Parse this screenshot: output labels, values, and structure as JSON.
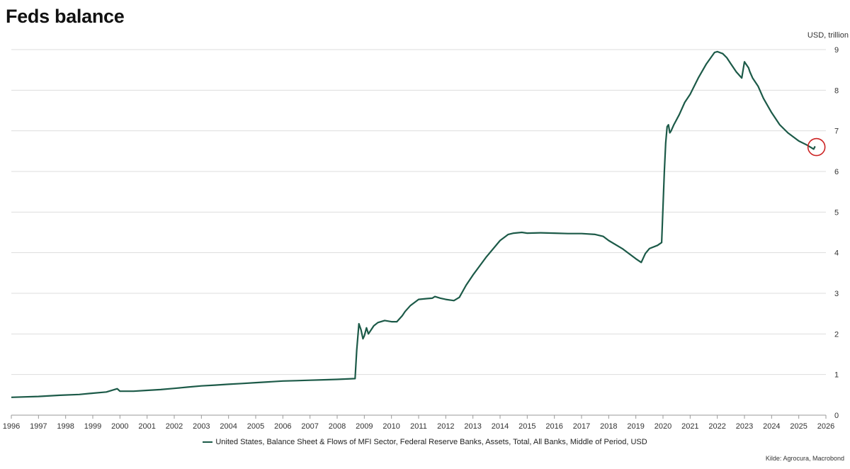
{
  "title": "Feds balance",
  "unit_label": "USD, trillion",
  "source": "Kilde: Agrocura, Macrobond",
  "colors": {
    "line": "#1c5a48",
    "marker": "#cc2222",
    "grid": "#dddddd"
  },
  "chart_data": {
    "type": "line",
    "title": "Feds balance",
    "ylabel": "USD, trillion",
    "xlim": [
      1996,
      2026
    ],
    "ylim": [
      0,
      9
    ],
    "x_ticks": [
      "1996",
      "1997",
      "1998",
      "1999",
      "2000",
      "2001",
      "2002",
      "2003",
      "2004",
      "2005",
      "2006",
      "2007",
      "2008",
      "2009",
      "2010",
      "2011",
      "2012",
      "2013",
      "2014",
      "2015",
      "2016",
      "2017",
      "2018",
      "2019",
      "2020",
      "2021",
      "2022",
      "2023",
      "2024",
      "2025",
      "2026"
    ],
    "y_ticks": [
      "0",
      "1",
      "2",
      "3",
      "4",
      "5",
      "6",
      "7",
      "8",
      "9"
    ],
    "grid": true,
    "legend_position": "bottom",
    "annotations": [
      {
        "type": "circle",
        "x": 2025.6,
        "y": 6.6
      }
    ],
    "series": [
      {
        "name": "United States, Balance Sheet & Flows of MFI Sector, Federal Reserve Banks, Assets, Total, All Banks, Middle of Period, USD",
        "x": [
          1996.0,
          1997.0,
          1997.8,
          1998.5,
          1999.0,
          1999.5,
          1999.9,
          2000.0,
          2000.5,
          2001.0,
          2001.5,
          2002.0,
          2002.5,
          2003.0,
          2003.5,
          2004.0,
          2004.5,
          2005.0,
          2005.5,
          2006.0,
          2006.5,
          2007.0,
          2007.5,
          2008.0,
          2008.66,
          2008.72,
          2008.8,
          2008.88,
          2008.95,
          2009.0,
          2009.08,
          2009.15,
          2009.25,
          2009.35,
          2009.5,
          2009.75,
          2010.0,
          2010.2,
          2010.4,
          2010.5,
          2010.7,
          2011.0,
          2011.3,
          2011.5,
          2011.6,
          2011.8,
          2012.0,
          2012.3,
          2012.5,
          2012.75,
          2013.0,
          2013.5,
          2014.0,
          2014.3,
          2014.5,
          2014.8,
          2015.0,
          2015.5,
          2016.0,
          2016.5,
          2017.0,
          2017.5,
          2017.8,
          2018.0,
          2018.5,
          2019.0,
          2019.2,
          2019.35,
          2019.5,
          2019.8,
          2019.95,
          2020.05,
          2020.1,
          2020.15,
          2020.2,
          2020.25,
          2020.3,
          2020.4,
          2020.6,
          2020.8,
          2021.0,
          2021.3,
          2021.6,
          2021.9,
          2022.0,
          2022.2,
          2022.35,
          2022.5,
          2022.7,
          2022.9,
          2023.0,
          2023.15,
          2023.2,
          2023.3,
          2023.5,
          2023.7,
          2024.0,
          2024.3,
          2024.6,
          2025.0,
          2025.3,
          2025.5,
          2025.55,
          2025.6
        ],
        "values": [
          0.44,
          0.46,
          0.49,
          0.51,
          0.54,
          0.57,
          0.65,
          0.59,
          0.59,
          0.61,
          0.63,
          0.66,
          0.69,
          0.72,
          0.74,
          0.76,
          0.78,
          0.8,
          0.82,
          0.84,
          0.85,
          0.86,
          0.87,
          0.88,
          0.9,
          1.6,
          2.25,
          2.1,
          1.88,
          1.95,
          2.15,
          2.0,
          2.1,
          2.2,
          2.28,
          2.33,
          2.3,
          2.3,
          2.45,
          2.55,
          2.7,
          2.85,
          2.87,
          2.88,
          2.92,
          2.88,
          2.85,
          2.82,
          2.9,
          3.2,
          3.45,
          3.9,
          4.3,
          4.45,
          4.48,
          4.5,
          4.48,
          4.49,
          4.48,
          4.47,
          4.47,
          4.45,
          4.4,
          4.3,
          4.1,
          3.85,
          3.76,
          3.98,
          4.1,
          4.18,
          4.25,
          6.0,
          6.7,
          7.1,
          7.15,
          6.95,
          7.0,
          7.15,
          7.4,
          7.7,
          7.9,
          8.3,
          8.65,
          8.93,
          8.95,
          8.9,
          8.8,
          8.65,
          8.45,
          8.3,
          8.7,
          8.55,
          8.45,
          8.3,
          8.1,
          7.8,
          7.45,
          7.15,
          6.95,
          6.75,
          6.65,
          6.57,
          6.55,
          6.62
        ]
      }
    ]
  }
}
